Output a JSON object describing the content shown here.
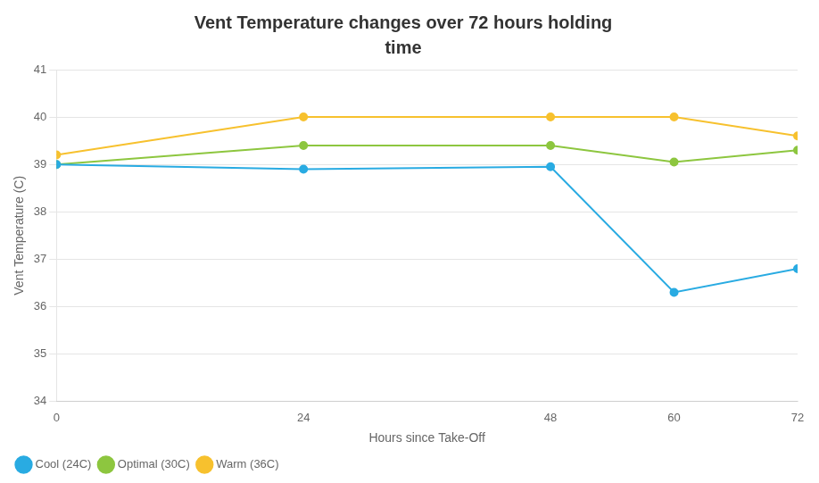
{
  "chart_data": {
    "type": "line",
    "title": "Vent Temperature changes over 72 hours holding",
    "subtitle": "time",
    "x_label": "Hours since Take-Off",
    "y_label": "Vent Temperature (C)",
    "x": [
      0,
      24,
      48,
      60,
      72
    ],
    "series": [
      {
        "name": "Cool (24C)",
        "color": "#29ABE2",
        "values": [
          39.0,
          38.9,
          38.95,
          36.3,
          36.8
        ]
      },
      {
        "name": "Optimal (30C)",
        "color": "#8DC63F",
        "values": [
          39.0,
          39.4,
          39.4,
          39.05,
          39.3
        ]
      },
      {
        "name": "Warm (36C)",
        "color": "#F7C12E",
        "values": [
          39.2,
          40.0,
          40.0,
          40.0,
          39.6
        ]
      }
    ],
    "xlim": [
      0,
      72
    ],
    "xticks": [
      0,
      24,
      48,
      60,
      72
    ],
    "ylim": [
      34,
      41
    ],
    "yticks": [
      34,
      35,
      36,
      37,
      38,
      39,
      40,
      41
    ],
    "grid": "y",
    "legend": "lower left",
    "marker": "circle"
  }
}
